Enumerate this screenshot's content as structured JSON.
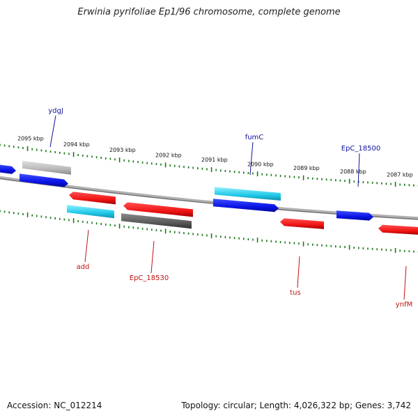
{
  "title": "Erwinia pyrifoliae Ep1/96 chromosome, complete genome",
  "footer": {
    "accession": "Accession: NC_012214",
    "summary": "Topology: circular; Length: 4,026,322 bp; Genes: 3,742"
  },
  "colors": {
    "backbone": "#8c8c8c",
    "tick": "#1a7a1a",
    "label_forward": "#1010a0",
    "label_reverse": "#c01010",
    "gene_blue": "#0a14e6",
    "gene_red": "#f01414",
    "gene_cyan": "#20c8e8",
    "gene_lightgray": "#b8b8b8",
    "gene_darkgray": "#5a5a5a"
  },
  "scale": [
    {
      "label": "2095 kbp"
    },
    {
      "label": "2094 kbp"
    },
    {
      "label": "2093 kbp"
    },
    {
      "label": "2092 kbp"
    },
    {
      "label": "2091 kbp"
    },
    {
      "label": "2090 kbp"
    },
    {
      "label": "2089 kbp"
    },
    {
      "label": "2088 kbp"
    },
    {
      "label": "2087 kbp"
    }
  ],
  "gene_labels": [
    {
      "name": "ydgJ",
      "strand": "forward"
    },
    {
      "name": "fumC",
      "strand": "forward"
    },
    {
      "name": "EpC_18500",
      "strand": "forward"
    },
    {
      "name": "add",
      "strand": "reverse"
    },
    {
      "name": "EpC_18530",
      "strand": "reverse"
    },
    {
      "name": "tus",
      "strand": "reverse"
    },
    {
      "name": "ynfM",
      "strand": "reverse"
    }
  ],
  "genes": [
    {
      "id": "left-edge-forward",
      "color": "gene_blue",
      "strand": "forward"
    },
    {
      "id": "ydgJ",
      "color": "gene_lightgray",
      "strand": "forward"
    },
    {
      "id": "ydgJ-neighbor",
      "color": "gene_blue",
      "strand": "forward"
    },
    {
      "id": "fumC",
      "color": "gene_cyan",
      "strand": "forward"
    },
    {
      "id": "fumC-neighbor",
      "color": "gene_blue",
      "strand": "forward"
    },
    {
      "id": "EpC_18500",
      "color": "gene_blue",
      "strand": "forward"
    },
    {
      "id": "add-upper",
      "color": "gene_red",
      "strand": "reverse"
    },
    {
      "id": "add",
      "color": "gene_cyan",
      "strand": "reverse"
    },
    {
      "id": "EpC_18530-upper",
      "color": "gene_red",
      "strand": "reverse"
    },
    {
      "id": "EpC_18530",
      "color": "gene_darkgray",
      "strand": "reverse"
    },
    {
      "id": "tus",
      "color": "gene_red",
      "strand": "reverse"
    },
    {
      "id": "ynfM",
      "color": "gene_red",
      "strand": "reverse"
    }
  ]
}
